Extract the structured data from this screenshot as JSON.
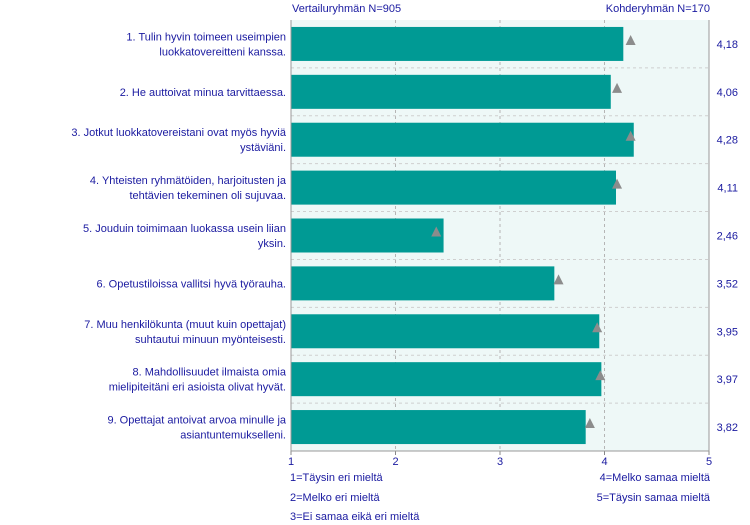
{
  "header": {
    "left": "Vertailuryhmän  N=905",
    "right": "Kohderyhmän N=170"
  },
  "chart_data": {
    "type": "bar",
    "orientation": "horizontal",
    "categories": [
      [
        "1. Tulin hyvin toimeen useimpien",
        "luokkatovereitteni kanssa."
      ],
      [
        "2. He auttoivat minua tarvittaessa."
      ],
      [
        "3. Jotkut luokkatovereistani ovat myös hyviä",
        "ystäviäni."
      ],
      [
        "4. Yhteisten ryhmätöiden, harjoitusten ja",
        "tehtävien tekeminen oli sujuvaa."
      ],
      [
        "5. Jouduin toimimaan luokassa usein liian",
        "yksin."
      ],
      [
        "6. Opetustiloissa vallitsi hyvä työrauha."
      ],
      [
        "7. Muu henkilökunta (muut kuin opettajat)",
        "suhtautui minuun myönteisesti."
      ],
      [
        "8. Mahdollisuudet ilmaista omia",
        "mielipiteitäni eri asioista olivat hyvät."
      ],
      [
        "9. Opettajat antoivat arvoa minulle ja",
        "asiantuntemukselleni."
      ]
    ],
    "series": [
      {
        "name": "Kohderyhmän N=170",
        "values": [
          4.18,
          4.06,
          4.28,
          4.11,
          2.46,
          3.52,
          3.95,
          3.97,
          3.82
        ],
        "color": "#009a94"
      },
      {
        "name": "Vertailuryhmän  N=905",
        "values": [
          4.25,
          4.12,
          4.25,
          4.12,
          2.39,
          3.56,
          3.93,
          3.96,
          3.86
        ],
        "color": "#8c8c8c"
      }
    ],
    "value_labels": [
      "4,18",
      "4,06",
      "4,28",
      "4,11",
      "2,46",
      "3,52",
      "3,95",
      "3,97",
      "3,82"
    ],
    "xlim": [
      1,
      5
    ],
    "xticks": [
      "1",
      "2",
      "3",
      "4",
      "5"
    ],
    "grid": true,
    "plot_background": "#eef8f7"
  },
  "scale_legend": {
    "left": [
      "1=Täysin eri mieltä",
      "2=Melko eri mieltä",
      "3=Ei samaa eikä eri mieltä"
    ],
    "right": [
      "4=Melko samaa mieltä",
      "5=Täysin samaa mieltä"
    ]
  }
}
